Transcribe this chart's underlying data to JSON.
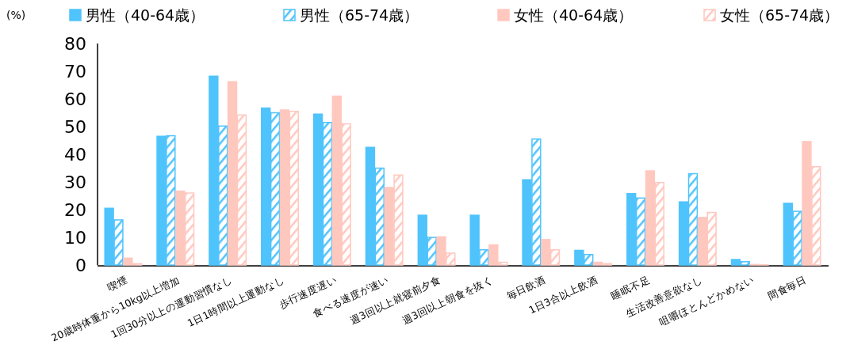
{
  "chart_data": {
    "type": "bar",
    "ylabel": "(%)",
    "legend": "top",
    "ylim": [
      0,
      80
    ],
    "yticks": [
      0,
      10,
      20,
      30,
      40,
      50,
      60,
      70,
      80
    ],
    "grid": false,
    "categories": [
      "喫煙",
      "20歳時体重から10kg以上増加",
      "1回30分以上の運動習慣なし",
      "1日1時間以上運動なし",
      "歩行速度遅い",
      "食べる速度が速い",
      "週3回以上就寝前夕食",
      "週3回以上朝食を抜く",
      "毎日飲酒",
      "1日3合以上飲酒",
      "睡眠不足",
      "生活改善意欲なし",
      "咀嚼ほとんどかめない",
      "間食毎日"
    ],
    "series": [
      {
        "name": "男性（40-64歳）",
        "color": "#4fc3fc",
        "values": [
          20.5,
          46.5,
          68.2,
          56.7,
          54.5,
          42.5,
          18.0,
          18.0,
          30.8,
          5.3,
          25.8,
          22.8,
          2.0,
          22.3
        ]
      },
      {
        "name": "男性（65-74歳）",
        "color": "#4fc3fc",
        "values": [
          16.3,
          46.7,
          50.2,
          55.0,
          51.5,
          35.0,
          10.0,
          5.5,
          45.5,
          3.8,
          24.2,
          33.0,
          1.2,
          19.4
        ]
      },
      {
        "name": "女性（40-64歳）",
        "color": "#ffc8bf",
        "values": [
          2.5,
          26.7,
          66.2,
          56.0,
          61.0,
          28.0,
          10.2,
          7.3,
          9.2,
          1.0,
          34.0,
          17.2,
          0.2,
          44.6
        ]
      },
      {
        "name": "女性（65-74歳）",
        "color": "#ffc8bf",
        "values": [
          0.5,
          26.0,
          54.2,
          55.5,
          51.0,
          32.5,
          4.3,
          1.0,
          5.5,
          0.5,
          29.8,
          19.0,
          0.1,
          35.5
        ]
      }
    ]
  }
}
